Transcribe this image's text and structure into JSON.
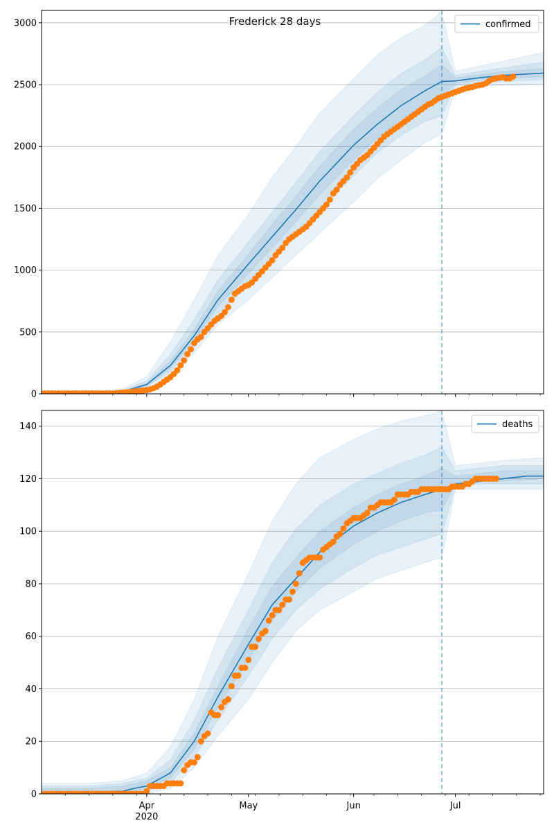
{
  "figure_title": "Frederick 28 days",
  "colors": {
    "model": "#1f77b4",
    "observed": "#ff7f0e",
    "band": "#1f77b4",
    "grid": "#b0b0b0",
    "axes": "#000000"
  },
  "chart_data": [
    {
      "type": "line",
      "title": "Frederick 28 days",
      "ylabel": "",
      "xlabel": "",
      "legend": {
        "label": "confirmed",
        "placement": "top-right"
      },
      "x_axis": {
        "type": "date",
        "range": [
          "2020-03-01",
          "2020-07-27"
        ],
        "major_ticks": [
          {
            "date": "2020-04-01",
            "label": "Apr",
            "sublabel": "2020"
          },
          {
            "date": "2020-05-01",
            "label": "May",
            "sublabel": ""
          },
          {
            "date": "2020-06-01",
            "label": "Jun",
            "sublabel": ""
          },
          {
            "date": "2020-07-01",
            "label": "Jul",
            "sublabel": ""
          }
        ]
      },
      "ylim": [
        0,
        3100
      ],
      "yticks": [
        0,
        500,
        1000,
        1500,
        2000,
        2500,
        3000
      ],
      "grid": "horizontal",
      "forecast_start": "2020-06-27",
      "model_line": {
        "x": [
          "2020-03-01",
          "2020-03-15",
          "2020-03-25",
          "2020-04-01",
          "2020-04-08",
          "2020-04-15",
          "2020-04-22",
          "2020-05-01",
          "2020-05-08",
          "2020-05-15",
          "2020-05-22",
          "2020-06-01",
          "2020-06-08",
          "2020-06-15",
          "2020-06-22",
          "2020-06-27",
          "2020-07-01",
          "2020-07-08",
          "2020-07-15",
          "2020-07-27"
        ],
        "y": [
          3,
          5,
          18,
          75,
          230,
          470,
          760,
          1050,
          1270,
          1490,
          1720,
          2010,
          2180,
          2330,
          2450,
          2525,
          2530,
          2555,
          2575,
          2593
        ]
      },
      "bands": [
        {
          "x": [
            "2020-03-01",
            "2020-03-15",
            "2020-03-25",
            "2020-04-01",
            "2020-04-08",
            "2020-04-15",
            "2020-04-22",
            "2020-05-01",
            "2020-05-08",
            "2020-05-15",
            "2020-05-22",
            "2020-06-01",
            "2020-06-08",
            "2020-06-15",
            "2020-06-22",
            "2020-06-27",
            "2020-07-01",
            "2020-07-08",
            "2020-07-15",
            "2020-07-27"
          ],
          "lower": [
            0,
            0,
            5,
            40,
            140,
            330,
            560,
            760,
            940,
            1120,
            1300,
            1550,
            1740,
            1890,
            2030,
            2100,
            2470,
            2490,
            2495,
            2505
          ],
          "upper": [
            8,
            12,
            40,
            140,
            420,
            760,
            1120,
            1450,
            1750,
            2000,
            2270,
            2550,
            2740,
            2880,
            2980,
            3090,
            2610,
            2650,
            2690,
            2760
          ]
        },
        {
          "x": [
            "2020-03-01",
            "2020-03-15",
            "2020-03-25",
            "2020-04-01",
            "2020-04-08",
            "2020-04-15",
            "2020-04-22",
            "2020-05-01",
            "2020-05-08",
            "2020-05-15",
            "2020-05-22",
            "2020-06-01",
            "2020-06-08",
            "2020-06-15",
            "2020-06-22",
            "2020-06-27",
            "2020-07-01",
            "2020-07-08",
            "2020-07-15",
            "2020-07-27"
          ],
          "lower": [
            1,
            2,
            10,
            55,
            180,
            400,
            650,
            880,
            1090,
            1290,
            1500,
            1760,
            1950,
            2090,
            2200,
            2250,
            2495,
            2515,
            2525,
            2540
          ],
          "upper": [
            6,
            9,
            28,
            105,
            320,
            600,
            920,
            1230,
            1470,
            1710,
            1960,
            2250,
            2440,
            2590,
            2700,
            2800,
            2575,
            2605,
            2635,
            2680
          ]
        },
        {
          "x": [
            "2020-03-01",
            "2020-03-15",
            "2020-03-25",
            "2020-04-01",
            "2020-04-08",
            "2020-04-15",
            "2020-04-22",
            "2020-05-01",
            "2020-05-08",
            "2020-05-15",
            "2020-05-22",
            "2020-06-01",
            "2020-06-08",
            "2020-06-15",
            "2020-06-22",
            "2020-06-27",
            "2020-07-01",
            "2020-07-08",
            "2020-07-15",
            "2020-07-27"
          ],
          "lower": [
            2,
            3,
            14,
            65,
            205,
            435,
            705,
            970,
            1180,
            1390,
            1610,
            1890,
            2070,
            2220,
            2340,
            2400,
            2510,
            2535,
            2550,
            2565
          ],
          "upper": [
            4,
            7,
            22,
            88,
            265,
            520,
            830,
            1130,
            1370,
            1600,
            1840,
            2140,
            2310,
            2460,
            2570,
            2660,
            2555,
            2580,
            2605,
            2630
          ]
        }
      ],
      "observed": {
        "start": "2020-03-01",
        "values": [
          3,
          3,
          3,
          3,
          3,
          3,
          3,
          3,
          3,
          3,
          3,
          3,
          3,
          3,
          3,
          3,
          3,
          3,
          3,
          3,
          3,
          3,
          5,
          8,
          10,
          12,
          15,
          18,
          20,
          23,
          27,
          30,
          36,
          45,
          58,
          75,
          95,
          115,
          135,
          160,
          190,
          230,
          270,
          320,
          360,
          410,
          440,
          460,
          500,
          530,
          560,
          590,
          610,
          630,
          660,
          700,
          760,
          810,
          830,
          850,
          870,
          880,
          900,
          930,
          960,
          990,
          1020,
          1050,
          1080,
          1120,
          1150,
          1180,
          1220,
          1250,
          1270,
          1290,
          1310,
          1330,
          1350,
          1380,
          1410,
          1440,
          1470,
          1500,
          1530,
          1570,
          1620,
          1650,
          1690,
          1720,
          1750,
          1790,
          1830,
          1860,
          1890,
          1910,
          1930,
          1960,
          1990,
          2020,
          2050,
          2080,
          2100,
          2120,
          2140,
          2160,
          2180,
          2200,
          2220,
          2240,
          2260,
          2280,
          2300,
          2320,
          2340,
          2350,
          2370,
          2390,
          2400,
          2410,
          2420,
          2430,
          2440,
          2450,
          2460,
          2470,
          2475,
          2480,
          2490,
          2495,
          2500,
          2510,
          2530,
          2545,
          2550,
          2555,
          2560,
          2550,
          2550,
          2565
        ]
      }
    },
    {
      "type": "line",
      "title": "",
      "ylabel": "",
      "xlabel": "",
      "legend": {
        "label": "deaths",
        "placement": "top-right"
      },
      "x_axis": {
        "type": "date",
        "range": [
          "2020-03-01",
          "2020-07-27"
        ],
        "major_ticks": [
          {
            "date": "2020-04-01",
            "label": "Apr",
            "sublabel": "2020"
          },
          {
            "date": "2020-05-01",
            "label": "May",
            "sublabel": ""
          },
          {
            "date": "2020-06-01",
            "label": "Jun",
            "sublabel": ""
          },
          {
            "date": "2020-07-01",
            "label": "Jul",
            "sublabel": ""
          }
        ]
      },
      "ylim": [
        0,
        146
      ],
      "yticks": [
        0,
        20,
        40,
        60,
        80,
        100,
        120,
        140
      ],
      "grid": "horizontal",
      "forecast_start": "2020-06-27",
      "model_line": {
        "x": [
          "2020-03-01",
          "2020-03-15",
          "2020-03-25",
          "2020-03-28",
          "2020-04-01",
          "2020-04-08",
          "2020-04-15",
          "2020-04-22",
          "2020-05-01",
          "2020-05-08",
          "2020-05-15",
          "2020-05-22",
          "2020-06-01",
          "2020-06-08",
          "2020-06-15",
          "2020-06-22",
          "2020-06-27",
          "2020-07-01",
          "2020-07-08",
          "2020-07-15",
          "2020-07-22",
          "2020-07-27"
        ],
        "y": [
          0.3,
          0.6,
          1,
          2,
          3,
          8,
          20,
          37,
          57,
          72,
          82,
          92,
          102,
          107,
          111,
          114,
          116,
          118,
          119,
          120,
          121,
          121
        ]
      },
      "bands": [
        {
          "x": [
            "2020-03-01",
            "2020-03-15",
            "2020-03-25",
            "2020-04-01",
            "2020-04-08",
            "2020-04-15",
            "2020-04-22",
            "2020-05-01",
            "2020-05-08",
            "2020-05-15",
            "2020-05-22",
            "2020-06-01",
            "2020-06-08",
            "2020-06-15",
            "2020-06-22",
            "2020-06-27",
            "2020-07-01",
            "2020-07-08",
            "2020-07-15",
            "2020-07-27"
          ],
          "lower": [
            0,
            0,
            0,
            0,
            2,
            10,
            22,
            36,
            50,
            62,
            70,
            77,
            82,
            85,
            88,
            90,
            116,
            116,
            116,
            116
          ],
          "upper": [
            4,
            4,
            5,
            8,
            18,
            36,
            60,
            84,
            104,
            118,
            128,
            135,
            139,
            142,
            144,
            146,
            125,
            126,
            127,
            128
          ]
        },
        {
          "x": [
            "2020-03-01",
            "2020-03-15",
            "2020-03-25",
            "2020-04-01",
            "2020-04-08",
            "2020-04-15",
            "2020-04-22",
            "2020-05-01",
            "2020-05-08",
            "2020-05-15",
            "2020-05-22",
            "2020-06-01",
            "2020-06-08",
            "2020-06-15",
            "2020-06-22",
            "2020-06-27",
            "2020-07-01",
            "2020-07-08",
            "2020-07-15",
            "2020-07-27"
          ],
          "lower": [
            0,
            0,
            0,
            1,
            4,
            14,
            28,
            45,
            59,
            70,
            78,
            86,
            91,
            94,
            97,
            99,
            117,
            118,
            118,
            118
          ],
          "upper": [
            3,
            3,
            4,
            6,
            13,
            28,
            48,
            70,
            88,
            101,
            110,
            118,
            122,
            126,
            129,
            132,
            123,
            124,
            125,
            125
          ]
        },
        {
          "x": [
            "2020-03-01",
            "2020-03-15",
            "2020-03-25",
            "2020-04-01",
            "2020-04-08",
            "2020-04-15",
            "2020-04-22",
            "2020-05-01",
            "2020-05-08",
            "2020-05-15",
            "2020-05-22",
            "2020-06-01",
            "2020-06-08",
            "2020-06-15",
            "2020-06-22",
            "2020-06-27",
            "2020-07-01",
            "2020-07-08",
            "2020-07-15",
            "2020-07-27"
          ],
          "lower": [
            0,
            0,
            0,
            2,
            6,
            17,
            33,
            51,
            66,
            77,
            86,
            95,
            100,
            104,
            107,
            108,
            118,
            119,
            119,
            120
          ],
          "upper": [
            2,
            2,
            3,
            5,
            10,
            23,
            41,
            63,
            79,
            90,
            100,
            109,
            114,
            118,
            121,
            124,
            121,
            122,
            123,
            123
          ]
        }
      ],
      "observed": {
        "start": "2020-03-01",
        "values": [
          0,
          0,
          0,
          0,
          0,
          0,
          0,
          0,
          0,
          0,
          0,
          0,
          0,
          0,
          0,
          0,
          0,
          0,
          0,
          0,
          0,
          0,
          0,
          0,
          0,
          0,
          0,
          0,
          0,
          0,
          0,
          1,
          3,
          3,
          3,
          3,
          3,
          4,
          4,
          4,
          4,
          4,
          9,
          11,
          12,
          12,
          14,
          20,
          22,
          23,
          31,
          30,
          30,
          33,
          35,
          36,
          41,
          45,
          45,
          48,
          48,
          51,
          56,
          56,
          59,
          61,
          62,
          66,
          68,
          70,
          70,
          72,
          74,
          74,
          77,
          80,
          84,
          88,
          89,
          90,
          90,
          90,
          90,
          93,
          94,
          95,
          96,
          98,
          99,
          101,
          103,
          104,
          105,
          105,
          105,
          106,
          107,
          109,
          109,
          110,
          111,
          111,
          111,
          111,
          112,
          114,
          114,
          114,
          114,
          115,
          115,
          115,
          116,
          116,
          116,
          116,
          116,
          116,
          116,
          116,
          116,
          117,
          117,
          117,
          117,
          118,
          118,
          119,
          120,
          120,
          120,
          120,
          120,
          120,
          120
        ]
      }
    }
  ]
}
